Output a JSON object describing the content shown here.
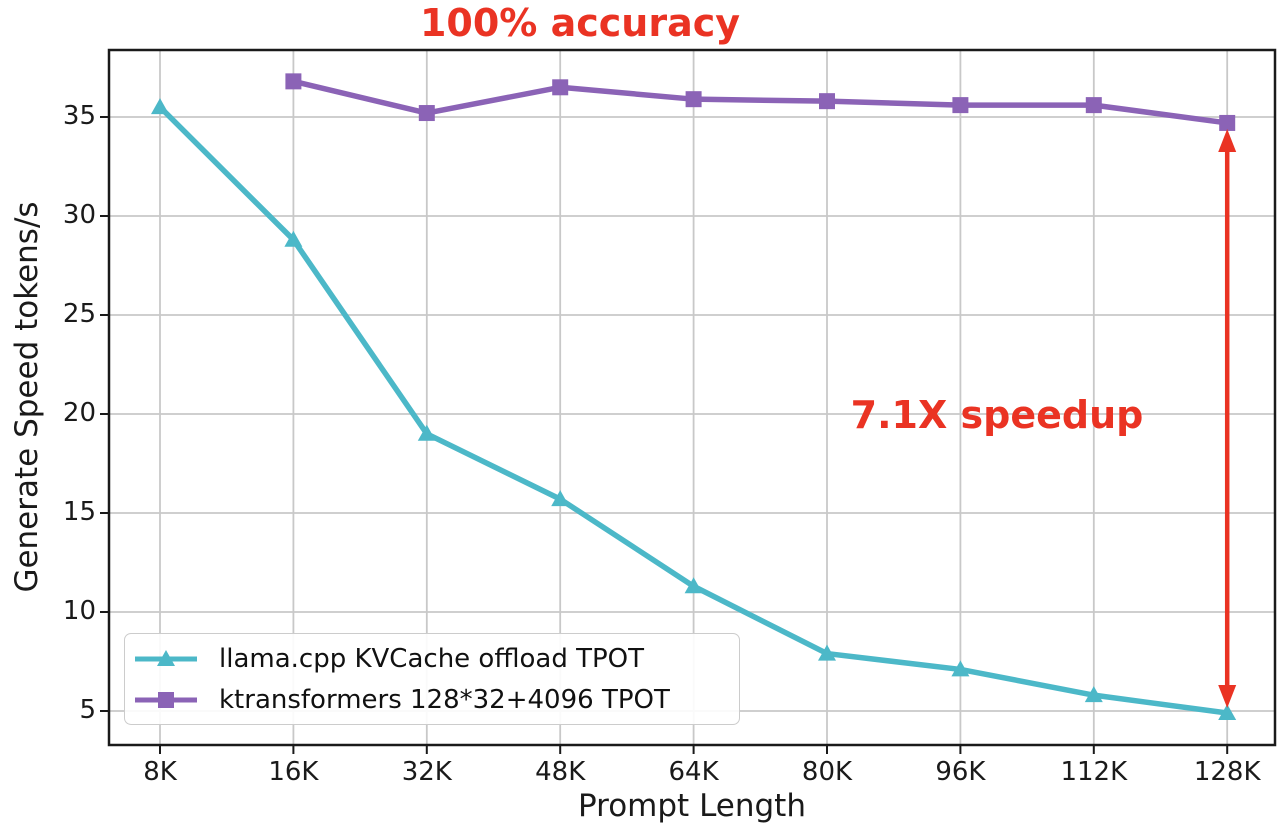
{
  "chart_data": {
    "type": "line",
    "title": "100% accuracy",
    "xlabel": "Prompt Length",
    "ylabel": "Generate Speed tokens/s",
    "categories": [
      "8K",
      "16K",
      "32K",
      "48K",
      "64K",
      "80K",
      "96K",
      "112K",
      "128K"
    ],
    "series": [
      {
        "name": "llama.cpp KVCache offload TPOT",
        "color": "#4cb8c8",
        "marker": "triangle",
        "values": [
          35.5,
          28.8,
          19.0,
          15.7,
          11.3,
          7.9,
          7.1,
          5.8,
          4.9
        ]
      },
      {
        "name": "ktransformers 128*32+4096 TPOT",
        "color": "#8b63b6",
        "marker": "square",
        "values": [
          null,
          36.8,
          35.2,
          36.5,
          35.9,
          35.8,
          35.6,
          35.6,
          34.7
        ]
      }
    ],
    "yticks": [
      5,
      10,
      15,
      20,
      25,
      30,
      35
    ],
    "ylim": [
      3.2,
      38.5
    ],
    "grid": true,
    "legend_position": "lower left",
    "annotations": [
      {
        "role": "title",
        "text": "100% accuracy",
        "color": "#ea3323"
      },
      {
        "role": "speedup-label",
        "text": "7.1X speedup",
        "color": "#ea3323"
      }
    ],
    "arrow": {
      "category": "128K",
      "from_value": 34.7,
      "to_value": 4.9,
      "style": "double-headed-vertical",
      "color": "#ea3323"
    },
    "colors": {
      "axis": "#1a1a1a",
      "grid": "#c8c8c8",
      "background": "#ffffff",
      "annotation_red": "#ea3323"
    }
  }
}
